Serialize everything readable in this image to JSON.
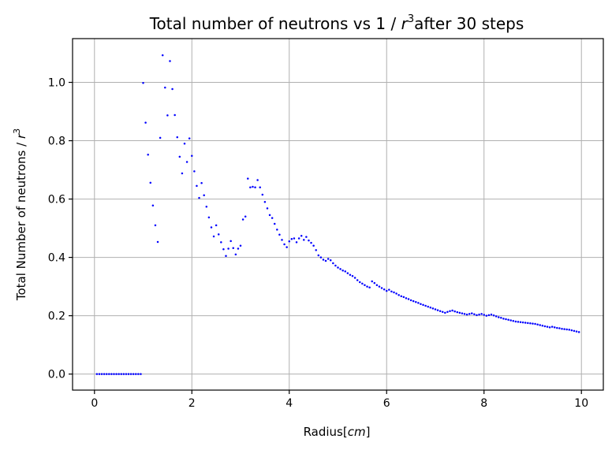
{
  "chart_data": {
    "type": "scatter",
    "title_main": "Total number of neutrons vs 1 / ",
    "title_var": "r",
    "title_exp": "3",
    "title_tail": "after 30 steps",
    "xlabel_main": "Radius[",
    "xlabel_var": "cm",
    "xlabel_tail": "]",
    "ylabel_main": "Total Number of neutrons / ",
    "ylabel_var": "r",
    "ylabel_exp": "3",
    "xlim": [
      -0.45,
      10.45
    ],
    "ylim": [
      -0.055,
      1.15
    ],
    "xticks": [
      0,
      2,
      4,
      6,
      8,
      10
    ],
    "xtick_labels": [
      "0",
      "2",
      "4",
      "6",
      "8",
      "10"
    ],
    "yticks": [
      0.0,
      0.2,
      0.4,
      0.6,
      0.8,
      1.0
    ],
    "ytick_labels": [
      "0.0",
      "0.2",
      "0.4",
      "0.6",
      "0.8",
      "1.0"
    ],
    "grid": true,
    "marker_color": "#0000ff",
    "series": [
      {
        "points": [
          [
            0.05,
            0
          ],
          [
            0.1,
            0
          ],
          [
            0.15,
            0
          ],
          [
            0.2,
            0
          ],
          [
            0.25,
            0
          ],
          [
            0.3,
            0
          ],
          [
            0.35,
            0
          ],
          [
            0.4,
            0
          ],
          [
            0.45,
            0
          ],
          [
            0.5,
            0
          ],
          [
            0.55,
            0
          ],
          [
            0.6,
            0
          ],
          [
            0.65,
            0
          ],
          [
            0.7,
            0
          ],
          [
            0.75,
            0
          ],
          [
            0.8,
            0
          ],
          [
            0.85,
            0
          ],
          [
            0.9,
            0
          ],
          [
            0.95,
            0
          ],
          [
            1.0,
            0.998
          ],
          [
            1.05,
            0.862
          ],
          [
            1.1,
            0.752
          ],
          [
            1.15,
            0.656
          ],
          [
            1.2,
            0.578
          ],
          [
            1.25,
            0.51
          ],
          [
            1.3,
            0.453
          ],
          [
            1.35,
            0.81
          ],
          [
            1.4,
            1.093
          ],
          [
            1.45,
            0.982
          ],
          [
            1.5,
            0.887
          ],
          [
            1.55,
            1.073
          ],
          [
            1.6,
            0.977
          ],
          [
            1.65,
            0.888
          ],
          [
            1.7,
            0.812
          ],
          [
            1.75,
            0.745
          ],
          [
            1.8,
            0.688
          ],
          [
            1.85,
            0.79
          ],
          [
            1.9,
            0.727
          ],
          [
            1.95,
            0.808
          ],
          [
            2.0,
            0.748
          ],
          [
            2.05,
            0.695
          ],
          [
            2.1,
            0.645
          ],
          [
            2.15,
            0.604
          ],
          [
            2.2,
            0.655
          ],
          [
            2.25,
            0.613
          ],
          [
            2.3,
            0.574
          ],
          [
            2.35,
            0.537
          ],
          [
            2.4,
            0.503
          ],
          [
            2.45,
            0.472
          ],
          [
            2.5,
            0.51
          ],
          [
            2.55,
            0.479
          ],
          [
            2.6,
            0.452
          ],
          [
            2.65,
            0.428
          ],
          [
            2.7,
            0.405
          ],
          [
            2.75,
            0.43
          ],
          [
            2.8,
            0.456
          ],
          [
            2.85,
            0.432
          ],
          [
            2.9,
            0.41
          ],
          [
            2.95,
            0.43
          ],
          [
            3.0,
            0.44
          ],
          [
            3.05,
            0.53
          ],
          [
            3.1,
            0.54
          ],
          [
            3.15,
            0.67
          ],
          [
            3.2,
            0.64
          ],
          [
            3.25,
            0.642
          ],
          [
            3.3,
            0.64
          ],
          [
            3.35,
            0.665
          ],
          [
            3.4,
            0.64
          ],
          [
            3.45,
            0.615
          ],
          [
            3.5,
            0.59
          ],
          [
            3.55,
            0.568
          ],
          [
            3.6,
            0.545
          ],
          [
            3.65,
            0.535
          ],
          [
            3.7,
            0.515
          ],
          [
            3.75,
            0.495
          ],
          [
            3.8,
            0.478
          ],
          [
            3.85,
            0.46
          ],
          [
            3.9,
            0.445
          ],
          [
            3.95,
            0.435
          ],
          [
            4.0,
            0.455
          ],
          [
            4.05,
            0.463
          ],
          [
            4.1,
            0.465
          ],
          [
            4.15,
            0.452
          ],
          [
            4.2,
            0.465
          ],
          [
            4.25,
            0.474
          ],
          [
            4.3,
            0.46
          ],
          [
            4.35,
            0.47
          ],
          [
            4.4,
            0.458
          ],
          [
            4.45,
            0.45
          ],
          [
            4.5,
            0.44
          ],
          [
            4.55,
            0.425
          ],
          [
            4.6,
            0.407
          ],
          [
            4.65,
            0.4
          ],
          [
            4.7,
            0.392
          ],
          [
            4.75,
            0.388
          ],
          [
            4.8,
            0.395
          ],
          [
            4.85,
            0.39
          ],
          [
            4.9,
            0.38
          ],
          [
            4.95,
            0.372
          ],
          [
            5.0,
            0.365
          ],
          [
            5.05,
            0.36
          ],
          [
            5.1,
            0.355
          ],
          [
            5.15,
            0.352
          ],
          [
            5.2,
            0.346
          ],
          [
            5.25,
            0.34
          ],
          [
            5.3,
            0.336
          ],
          [
            5.35,
            0.33
          ],
          [
            5.4,
            0.322
          ],
          [
            5.45,
            0.315
          ],
          [
            5.5,
            0.31
          ],
          [
            5.55,
            0.305
          ],
          [
            5.6,
            0.3
          ],
          [
            5.65,
            0.297
          ],
          [
            5.7,
            0.318
          ],
          [
            5.75,
            0.312
          ],
          [
            5.8,
            0.305
          ],
          [
            5.85,
            0.3
          ],
          [
            5.9,
            0.295
          ],
          [
            5.95,
            0.29
          ],
          [
            6.0,
            0.285
          ],
          [
            6.05,
            0.289
          ],
          [
            6.1,
            0.283
          ],
          [
            6.15,
            0.28
          ],
          [
            6.2,
            0.276
          ],
          [
            6.25,
            0.271
          ],
          [
            6.3,
            0.267
          ],
          [
            6.35,
            0.264
          ],
          [
            6.4,
            0.26
          ],
          [
            6.45,
            0.257
          ],
          [
            6.5,
            0.253
          ],
          [
            6.55,
            0.25
          ],
          [
            6.6,
            0.247
          ],
          [
            6.65,
            0.244
          ],
          [
            6.7,
            0.24
          ],
          [
            6.75,
            0.237
          ],
          [
            6.8,
            0.234
          ],
          [
            6.85,
            0.231
          ],
          [
            6.9,
            0.228
          ],
          [
            6.95,
            0.225
          ],
          [
            7.0,
            0.222
          ],
          [
            7.05,
            0.219
          ],
          [
            7.1,
            0.216
          ],
          [
            7.15,
            0.213
          ],
          [
            7.2,
            0.21
          ],
          [
            7.25,
            0.213
          ],
          [
            7.3,
            0.216
          ],
          [
            7.35,
            0.218
          ],
          [
            7.4,
            0.215
          ],
          [
            7.45,
            0.212
          ],
          [
            7.5,
            0.21
          ],
          [
            7.55,
            0.208
          ],
          [
            7.6,
            0.206
          ],
          [
            7.65,
            0.204
          ],
          [
            7.7,
            0.206
          ],
          [
            7.75,
            0.208
          ],
          [
            7.8,
            0.205
          ],
          [
            7.85,
            0.202
          ],
          [
            7.9,
            0.204
          ],
          [
            7.95,
            0.206
          ],
          [
            8.0,
            0.203
          ],
          [
            8.05,
            0.2
          ],
          [
            8.1,
            0.202
          ],
          [
            8.15,
            0.204
          ],
          [
            8.2,
            0.201
          ],
          [
            8.25,
            0.198
          ],
          [
            8.3,
            0.195
          ],
          [
            8.35,
            0.193
          ],
          [
            8.4,
            0.19
          ],
          [
            8.45,
            0.188
          ],
          [
            8.5,
            0.186
          ],
          [
            8.55,
            0.184
          ],
          [
            8.6,
            0.182
          ],
          [
            8.65,
            0.18
          ],
          [
            8.7,
            0.179
          ],
          [
            8.75,
            0.178
          ],
          [
            8.8,
            0.177
          ],
          [
            8.85,
            0.176
          ],
          [
            8.9,
            0.175
          ],
          [
            8.95,
            0.174
          ],
          [
            9.0,
            0.173
          ],
          [
            9.05,
            0.172
          ],
          [
            9.1,
            0.17
          ],
          [
            9.15,
            0.168
          ],
          [
            9.2,
            0.166
          ],
          [
            9.25,
            0.164
          ],
          [
            9.3,
            0.162
          ],
          [
            9.35,
            0.16
          ],
          [
            9.4,
            0.162
          ],
          [
            9.45,
            0.16
          ],
          [
            9.5,
            0.158
          ],
          [
            9.55,
            0.157
          ],
          [
            9.6,
            0.155
          ],
          [
            9.65,
            0.154
          ],
          [
            9.7,
            0.153
          ],
          [
            9.75,
            0.152
          ],
          [
            9.8,
            0.15
          ],
          [
            9.85,
            0.148
          ],
          [
            9.9,
            0.146
          ],
          [
            9.95,
            0.144
          ]
        ]
      }
    ]
  }
}
